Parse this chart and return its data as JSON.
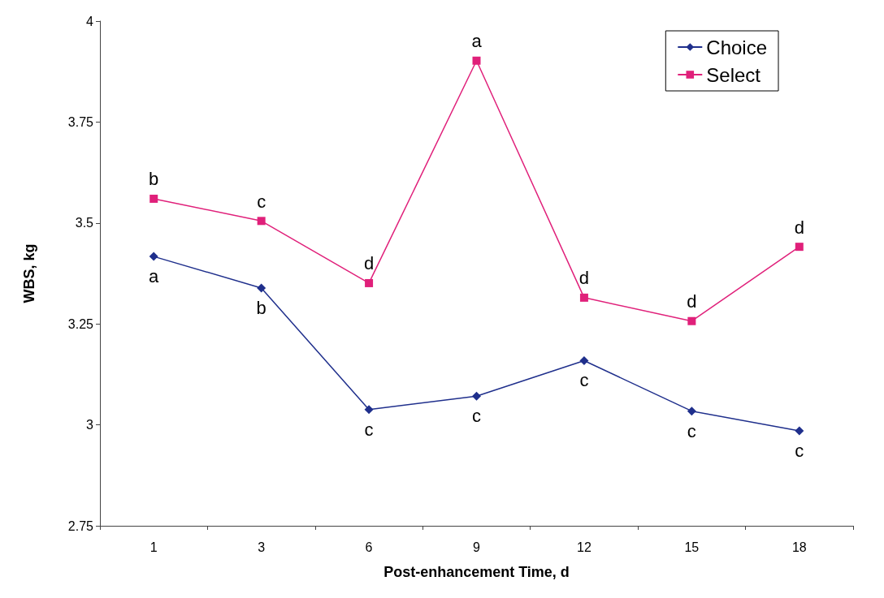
{
  "chart_data": {
    "type": "line",
    "xlabel": "Post-enhancement Time, d",
    "ylabel": "WBS, kg",
    "categories": [
      "1",
      "3",
      "6",
      "9",
      "12",
      "15",
      "18"
    ],
    "series": [
      {
        "name": "Choice",
        "color": "#1f2f8c",
        "marker": "diamond",
        "values": [
          3.417,
          3.339,
          3.038,
          3.071,
          3.159,
          3.034,
          2.985
        ],
        "value_labels": [
          "a",
          "b",
          "c",
          "c",
          "c",
          "c",
          "c"
        ]
      },
      {
        "name": "Select",
        "color": "#e0207a",
        "marker": "square",
        "values": [
          3.56,
          3.505,
          3.351,
          3.902,
          3.315,
          3.257,
          3.441
        ],
        "value_labels": [
          "b",
          "c",
          "d",
          "a",
          "d",
          "d",
          "d"
        ]
      }
    ],
    "ylim": [
      2.75,
      4
    ],
    "yticks": [
      2.75,
      3,
      3.25,
      3.5,
      3.75,
      4
    ],
    "grid": false,
    "legend": "top right"
  }
}
